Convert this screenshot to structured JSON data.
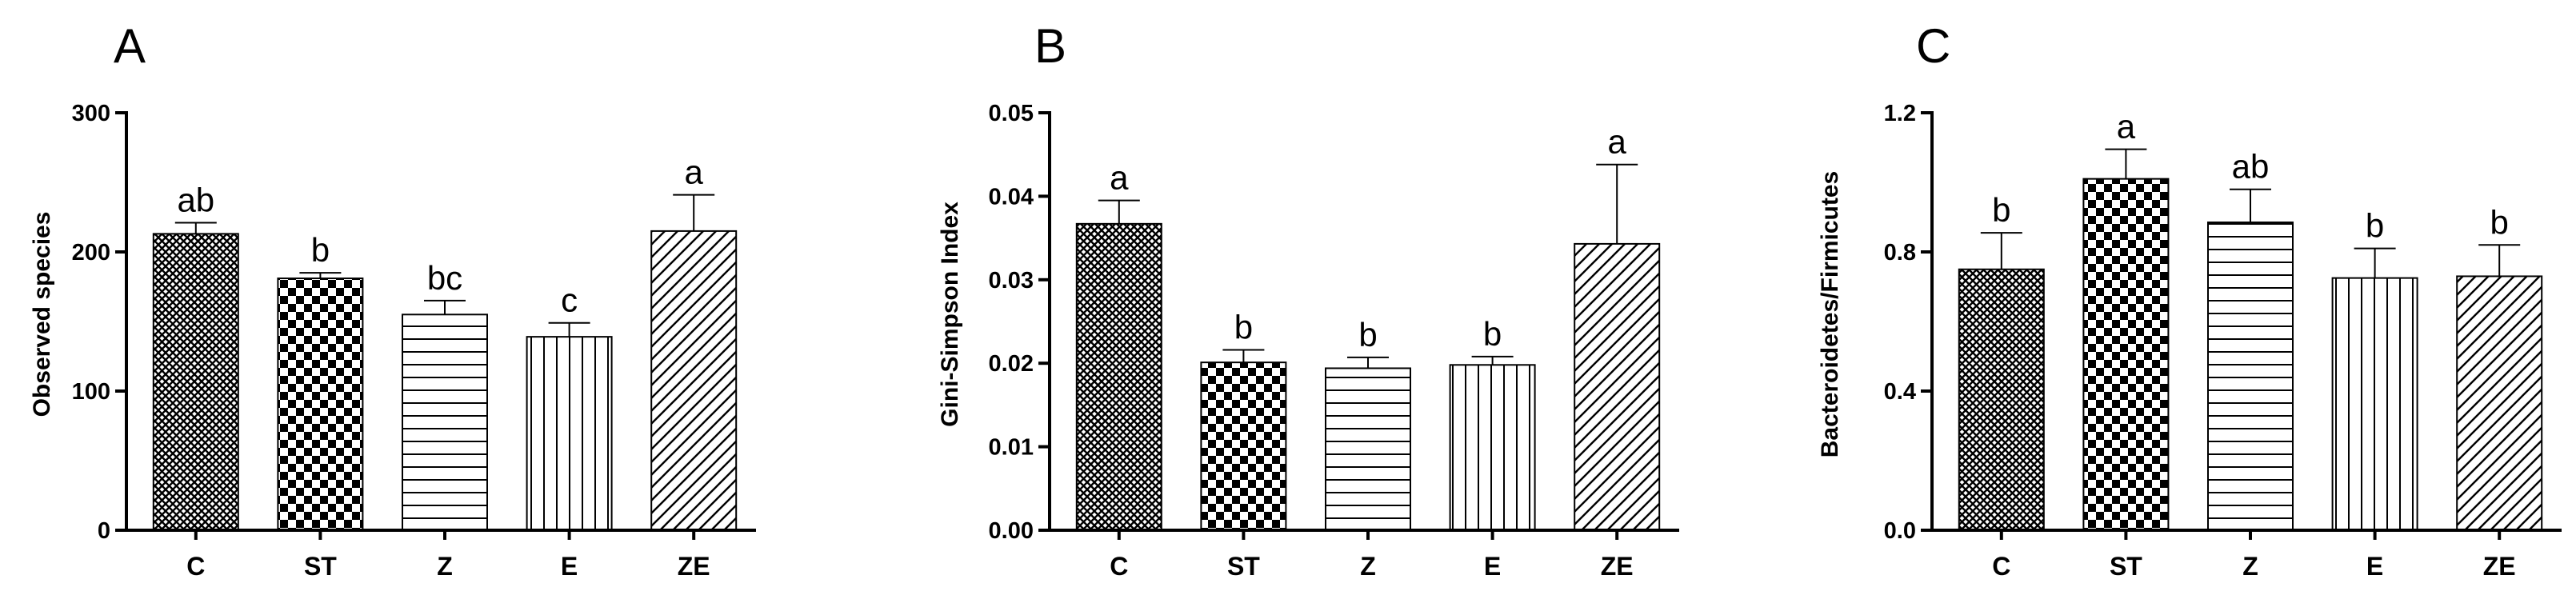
{
  "figure": {
    "panel_count": 3
  },
  "chart_data": [
    {
      "panel": "A",
      "type": "bar",
      "categories": [
        "C",
        "ST",
        "Z",
        "E",
        "ZE"
      ],
      "values": [
        213,
        181,
        155,
        139,
        215
      ],
      "errors": [
        8,
        4,
        10,
        10,
        26
      ],
      "significance": [
        "ab",
        "b",
        "bc",
        "c",
        "a"
      ],
      "patterns": [
        "crosshatch",
        "checker",
        "hlines",
        "vlines",
        "diag"
      ],
      "ylabel": "Observed species",
      "ylim": [
        0,
        300
      ],
      "yticks": [
        0,
        100,
        200,
        300
      ],
      "ytick_labels": [
        "0",
        "100",
        "200",
        "300"
      ]
    },
    {
      "panel": "B",
      "type": "bar",
      "categories": [
        "C",
        "ST",
        "Z",
        "E",
        "ZE"
      ],
      "values": [
        0.0367,
        0.0201,
        0.0194,
        0.0198,
        0.0343
      ],
      "errors": [
        0.0028,
        0.0015,
        0.0013,
        0.001,
        0.0095
      ],
      "significance": [
        "a",
        "b",
        "b",
        "b",
        "a"
      ],
      "patterns": [
        "crosshatch",
        "checker",
        "hlines",
        "vlines",
        "diag"
      ],
      "ylabel": "Gini-Simpson Index",
      "ylim": [
        0,
        0.05
      ],
      "yticks": [
        0,
        0.01,
        0.02,
        0.03,
        0.04,
        0.05
      ],
      "ytick_labels": [
        "0.00",
        "0.01",
        "0.02",
        "0.03",
        "0.04",
        "0.05"
      ]
    },
    {
      "panel": "C",
      "type": "bar",
      "categories": [
        "C",
        "ST",
        "Z",
        "E",
        "ZE"
      ],
      "values": [
        0.75,
        1.01,
        0.885,
        0.725,
        0.73
      ],
      "errors": [
        0.105,
        0.085,
        0.095,
        0.085,
        0.09
      ],
      "significance": [
        "b",
        "a",
        "ab",
        "b",
        "b"
      ],
      "patterns": [
        "crosshatch",
        "checker",
        "hlines",
        "vlines",
        "diag"
      ],
      "ylabel": "Bacteroidetes/Firmicutes",
      "ylim": [
        0,
        1.2
      ],
      "yticks": [
        0,
        0.4,
        0.8,
        1.2
      ],
      "ytick_labels": [
        "0.0",
        "0.4",
        "0.8",
        "1.2"
      ]
    }
  ]
}
